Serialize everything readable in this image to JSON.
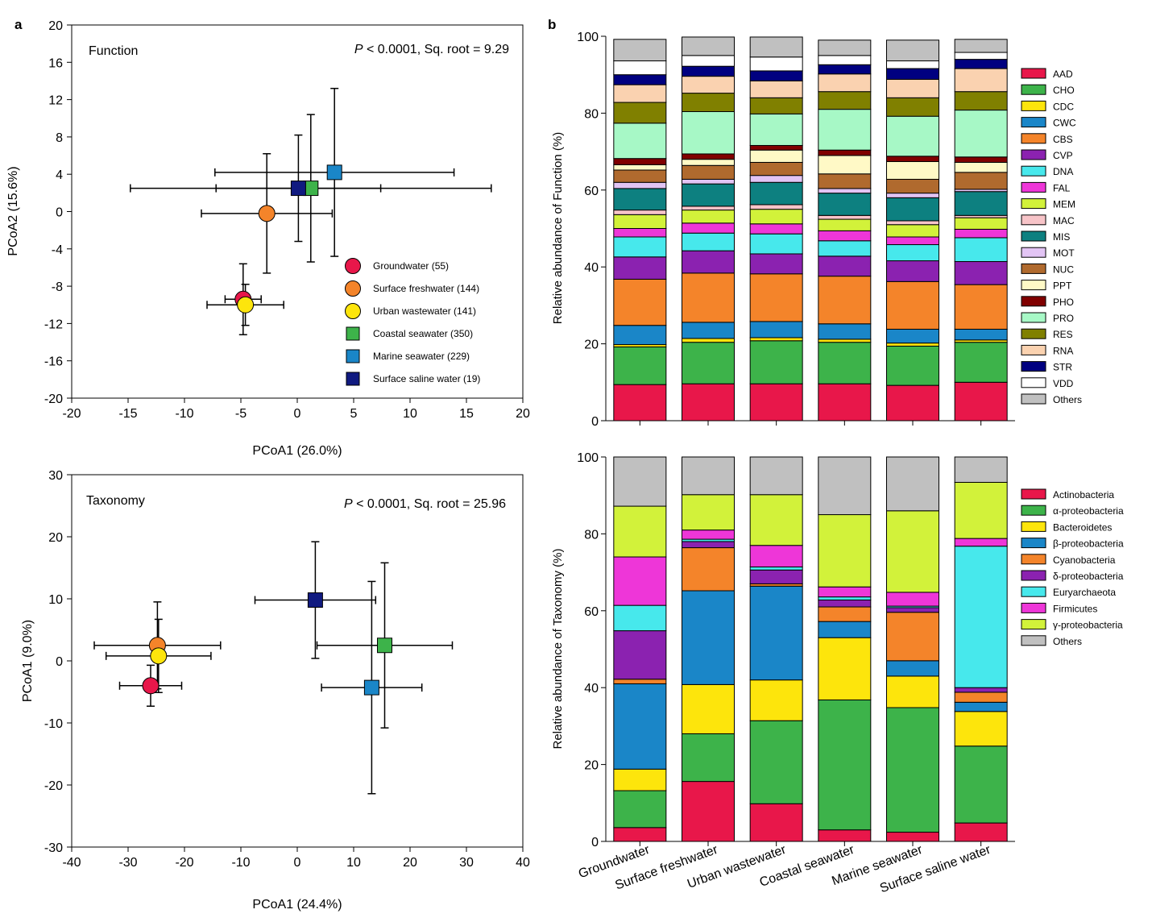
{
  "panel_labels": {
    "a": "a",
    "b": "b"
  },
  "chart_data": [
    {
      "id": "pcoa_function",
      "type": "scatter",
      "title": "Function",
      "stat_p": "P",
      "stat_rest": " < 0.0001, Sq. root = 9.29",
      "xlabel": "PCoA1 (26.0%)",
      "ylabel": "PCoA2 (15.6%)",
      "xlim": [
        -20,
        20
      ],
      "ylim": [
        -20,
        20
      ],
      "xticks": [
        -20,
        -15,
        -10,
        -5,
        0,
        5,
        10,
        15,
        20
      ],
      "yticks": [
        -20,
        -16,
        -12,
        -8,
        -4,
        0,
        4,
        8,
        12,
        16,
        20
      ],
      "legend": [
        {
          "label": "Groundwater (55)",
          "color": "#e8174a",
          "marker": "circle"
        },
        {
          "label": "Surface freshwater (144)",
          "color": "#f4842a",
          "marker": "circle"
        },
        {
          "label": "Urban wastewater (141)",
          "color": "#fde50c",
          "marker": "circle"
        },
        {
          "label": "Coastal seawater (350)",
          "color": "#3db34a",
          "marker": "square"
        },
        {
          "label": "Marine seawater (229)",
          "color": "#1a86c8",
          "marker": "square"
        },
        {
          "label": "Surface saline water (19)",
          "color": "#101a80",
          "marker": "square"
        }
      ],
      "points": [
        {
          "name": "Groundwater",
          "x": -4.8,
          "y": -9.4,
          "xerr": 1.6,
          "yerr": 3.8
        },
        {
          "name": "Surface freshwater",
          "x": -2.7,
          "y": -0.2,
          "xerr": 5.8,
          "yerr": 6.4
        },
        {
          "name": "Urban wastewater",
          "x": -4.6,
          "y": -10.0,
          "xerr": 3.4,
          "yerr": 2.2
        },
        {
          "name": "Coastal seawater",
          "x": 1.2,
          "y": 2.5,
          "xerr": 16.0,
          "yerr": 7.9
        },
        {
          "name": "Marine seawater",
          "x": 3.3,
          "y": 4.2,
          "xerr": 10.6,
          "yerr": 9.0
        },
        {
          "name": "Surface saline water",
          "x": 0.1,
          "y": 2.5,
          "xerr": 7.3,
          "yerr": 5.7
        }
      ]
    },
    {
      "id": "pcoa_taxonomy",
      "type": "scatter",
      "title": "Taxonomy",
      "stat_p": "P",
      "stat_rest": " < 0.0001, Sq. root = 25.96",
      "xlabel": "PCoA1 (24.4%)",
      "ylabel": "PCoA1 (9.0%)",
      "xlim": [
        -40,
        40
      ],
      "ylim": [
        -30,
        30
      ],
      "xticks": [
        -40,
        -30,
        -20,
        -10,
        0,
        10,
        20,
        30,
        40
      ],
      "yticks": [
        -30,
        -20,
        -10,
        0,
        10,
        20,
        30
      ],
      "points": [
        {
          "name": "Groundwater",
          "x": -26.0,
          "y": -4.0,
          "xerr": 5.5,
          "yerr": 3.3
        },
        {
          "name": "Surface freshwater",
          "x": -24.8,
          "y": 2.5,
          "xerr": 11.2,
          "yerr": 7.0
        },
        {
          "name": "Urban wastewater",
          "x": -24.6,
          "y": 0.8,
          "xerr": 9.3,
          "yerr": 5.9
        },
        {
          "name": "Coastal seawater",
          "x": 15.5,
          "y": 2.5,
          "xerr": 12.0,
          "yerr": 13.3
        },
        {
          "name": "Marine seawater",
          "x": 13.2,
          "y": -4.3,
          "xerr": 8.9,
          "yerr": 17.1
        },
        {
          "name": "Surface saline water",
          "x": 3.2,
          "y": 9.8,
          "xerr": 10.7,
          "yerr": 9.4
        }
      ]
    },
    {
      "id": "bars_function",
      "type": "bar",
      "stacked": true,
      "ylabel": "Relative abundance of Function (%)",
      "ylim": [
        0,
        100
      ],
      "yticks": [
        0,
        20,
        40,
        60,
        80,
        100
      ],
      "categories": [
        "Groundwater",
        "Surface freshwater",
        "Urban wastewater",
        "Coastal seawater",
        "Marine seawater",
        "Surface saline water"
      ],
      "series": [
        {
          "name": "AAD",
          "color": "#e8174a",
          "values": [
            9.4,
            9.6,
            9.6,
            9.6,
            9.2,
            10.0
          ]
        },
        {
          "name": "CHO",
          "color": "#3db34a",
          "values": [
            9.8,
            10.8,
            11.2,
            10.8,
            10.2,
            10.4
          ]
        },
        {
          "name": "CDC",
          "color": "#fde50c",
          "values": [
            0.6,
            1.0,
            0.8,
            0.8,
            0.8,
            0.6
          ]
        },
        {
          "name": "CWC",
          "color": "#1a86c8",
          "values": [
            5.0,
            4.2,
            4.2,
            4.0,
            3.6,
            2.8
          ]
        },
        {
          "name": "CBS",
          "color": "#f4842a",
          "values": [
            12.0,
            12.8,
            12.4,
            12.4,
            12.4,
            11.6
          ]
        },
        {
          "name": "CVP",
          "color": "#8b22b0",
          "values": [
            5.8,
            5.8,
            5.2,
            5.2,
            5.4,
            6.0
          ]
        },
        {
          "name": "DNA",
          "color": "#47e8ec",
          "values": [
            5.2,
            4.6,
            5.2,
            4.0,
            4.2,
            6.2
          ]
        },
        {
          "name": "FAL",
          "color": "#ee36d8",
          "values": [
            2.2,
            2.6,
            2.6,
            2.6,
            2.0,
            2.2
          ]
        },
        {
          "name": "MEM",
          "color": "#d2f23a",
          "values": [
            3.6,
            3.4,
            3.8,
            3.0,
            3.2,
            3.0
          ]
        },
        {
          "name": "MAC",
          "color": "#f7c4c8",
          "values": [
            1.2,
            1.0,
            1.2,
            1.0,
            1.0,
            0.6
          ]
        },
        {
          "name": "MIS",
          "color": "#0d8080",
          "values": [
            5.6,
            5.8,
            5.8,
            5.8,
            6.0,
            6.2
          ]
        },
        {
          "name": "MOT",
          "color": "#e2c4f4",
          "values": [
            1.6,
            1.2,
            1.8,
            1.2,
            1.2,
            0.6
          ]
        },
        {
          "name": "NUC",
          "color": "#b06a2e",
          "values": [
            3.2,
            3.6,
            3.4,
            3.8,
            3.6,
            4.4
          ]
        },
        {
          "name": "PPT",
          "color": "#fff9c6",
          "values": [
            1.4,
            1.6,
            3.2,
            4.8,
            4.6,
            2.6
          ]
        },
        {
          "name": "PHO",
          "color": "#800000",
          "values": [
            1.6,
            1.4,
            1.2,
            1.4,
            1.4,
            1.4
          ]
        },
        {
          "name": "PRO",
          "color": "#a7f8c6",
          "values": [
            9.2,
            11.0,
            8.2,
            10.6,
            10.4,
            12.2
          ]
        },
        {
          "name": "RES",
          "color": "#808000",
          "values": [
            5.4,
            4.8,
            4.2,
            4.6,
            4.8,
            4.8
          ]
        },
        {
          "name": "RNA",
          "color": "#fad2b0",
          "values": [
            4.6,
            4.4,
            4.4,
            4.6,
            4.8,
            6.0
          ]
        },
        {
          "name": "STR",
          "color": "#000080",
          "values": [
            2.6,
            2.6,
            2.6,
            2.4,
            2.8,
            2.4
          ]
        },
        {
          "name": "VDD",
          "color": "#ffffff",
          "values": [
            3.6,
            2.8,
            3.6,
            2.4,
            2.0,
            1.8
          ]
        },
        {
          "name": "Others",
          "color": "#c0c0c0",
          "values": [
            5.6,
            4.8,
            5.2,
            4.0,
            5.4,
            3.4
          ]
        }
      ]
    },
    {
      "id": "bars_taxonomy",
      "type": "bar",
      "stacked": true,
      "ylabel": "Relative abundance of Taxonomy (%)",
      "ylim": [
        0,
        100
      ],
      "yticks": [
        0,
        20,
        40,
        60,
        80,
        100
      ],
      "categories": [
        "Groundwater",
        "Surface freshwater",
        "Urban wastewater",
        "Coastal seawater",
        "Marine seawater",
        "Surface saline water"
      ],
      "series": [
        {
          "name": "Actinobacteria",
          "color": "#e8174a",
          "values": [
            3.6,
            15.6,
            9.8,
            3.0,
            2.4,
            4.8
          ]
        },
        {
          "name": "α-proteobacteria",
          "color": "#3db34a",
          "values": [
            9.6,
            12.4,
            21.6,
            33.8,
            32.4,
            20.0
          ]
        },
        {
          "name": "Bacteroidetes",
          "color": "#fde50c",
          "values": [
            5.6,
            12.8,
            10.6,
            16.2,
            8.2,
            9.0
          ]
        },
        {
          "name": "β-proteobacteria",
          "color": "#1a86c8",
          "values": [
            22.2,
            24.4,
            24.4,
            4.2,
            4.0,
            2.4
          ]
        },
        {
          "name": "Cyanobacteria",
          "color": "#f4842a",
          "values": [
            1.2,
            11.2,
            0.6,
            3.8,
            12.6,
            2.6
          ]
        },
        {
          "name": "δ-proteobacteria",
          "color": "#8b22b0",
          "values": [
            12.6,
            1.6,
            3.6,
            1.8,
            1.2,
            1.2
          ]
        },
        {
          "name": "Euryarchaeota",
          "color": "#47e8ec",
          "values": [
            6.6,
            0.6,
            0.8,
            0.8,
            0.4,
            36.8
          ]
        },
        {
          "name": "Firmicutes",
          "color": "#ee36d8",
          "values": [
            12.6,
            2.4,
            5.6,
            2.6,
            3.6,
            2.0
          ]
        },
        {
          "name": "γ-proteobacteria",
          "color": "#d2f23a",
          "values": [
            13.2,
            9.2,
            13.2,
            18.8,
            21.2,
            14.6
          ]
        },
        {
          "name": "Others",
          "color": "#c0c0c0",
          "values": [
            12.8,
            9.8,
            9.8,
            15.0,
            14.0,
            6.6
          ]
        }
      ]
    }
  ]
}
